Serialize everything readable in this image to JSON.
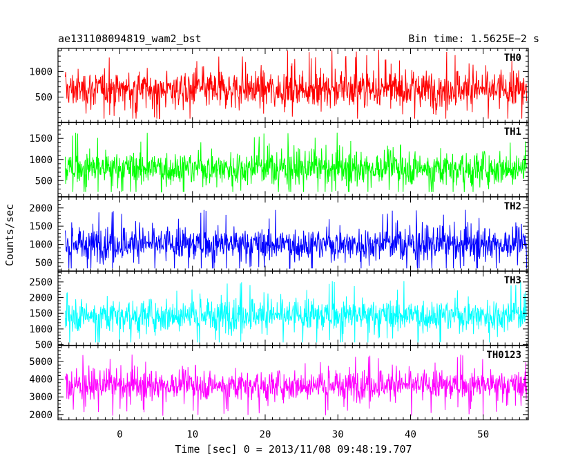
{
  "header": {
    "left_title": "ae131108094819_wam2_bst",
    "right_title": "Bin time: 1.5625E−2 s"
  },
  "ylabel": "Counts/sec",
  "xlabel": "Time [sec] 0 = 2013/11/08 09:48:19.707",
  "chart_data": {
    "type": "line",
    "x_range": [
      -8.5,
      56.2
    ],
    "bin_time_s": 0.015625,
    "x_ticks": [
      0,
      10,
      20,
      30,
      40,
      50
    ],
    "panels": [
      {
        "name": "TH0",
        "color": "#ff0000",
        "ylim": [
          0,
          1450
        ],
        "y_ticks": [
          500,
          1000
        ],
        "mean": 650,
        "spread": 300,
        "trace_min": 80,
        "trace_max": 1440
      },
      {
        "name": "TH1",
        "color": "#00ff00",
        "ylim": [
          120,
          1880
        ],
        "y_ticks": [
          500,
          1000,
          1500
        ],
        "mean": 800,
        "spread": 330,
        "trace_min": 230,
        "trace_max": 1760
      },
      {
        "name": "TH2",
        "color": "#0000ff",
        "ylim": [
          260,
          2300
        ],
        "y_ticks": [
          500,
          1000,
          1500,
          2000
        ],
        "mean": 1010,
        "spread": 370,
        "trace_min": 340,
        "trace_max": 2200
      },
      {
        "name": "TH3",
        "color": "#00ffff",
        "ylim": [
          480,
          2850
        ],
        "y_ticks": [
          500,
          1000,
          1500,
          2000,
          2500
        ],
        "mean": 1440,
        "spread": 430,
        "trace_min": 570,
        "trace_max": 2750
      },
      {
        "name": "TH0123",
        "color": "#ff00ff",
        "ylim": [
          1700,
          5900
        ],
        "y_ticks": [
          2000,
          3000,
          4000,
          5000
        ],
        "mean": 3670,
        "spread": 680,
        "trace_min": 1770,
        "trace_max": 5720
      }
    ]
  }
}
